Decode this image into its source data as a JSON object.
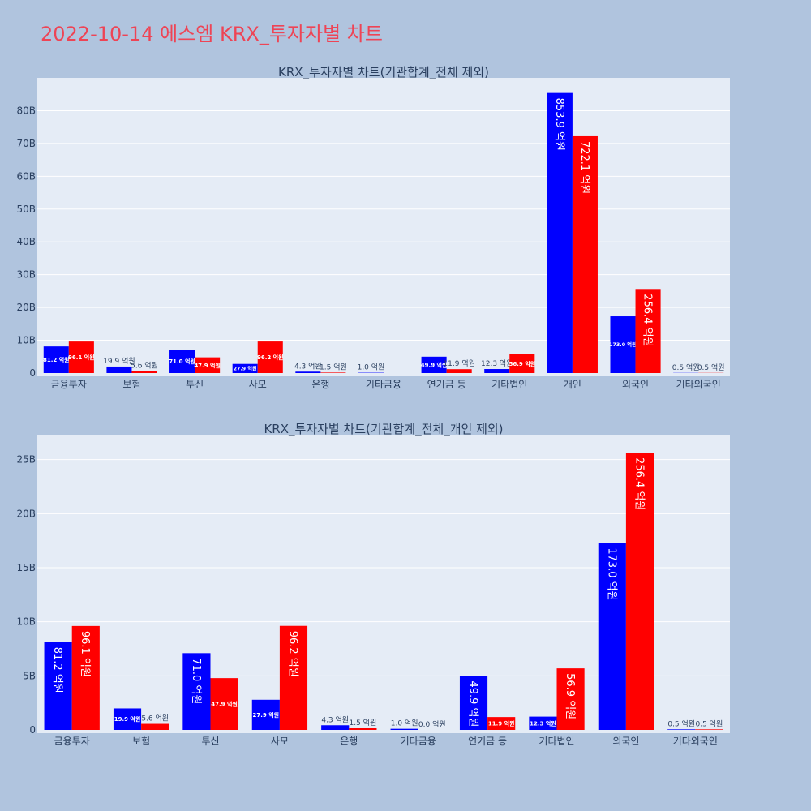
{
  "page": {
    "title": "2022-10-14 에스엠 KRX_투자자별 차트",
    "title_color": "#ee4455",
    "background": "#b0c4de",
    "plot_background": "#e5ecf6",
    "grid_color": "#ffffff"
  },
  "series_colors": [
    "#0000ff",
    "#ff0000"
  ],
  "chart_data": [
    {
      "type": "bar",
      "title": "KRX_투자자별 차트(기관합계_전체 제외)",
      "categories": [
        "금융투자",
        "보험",
        "투신",
        "사모",
        "은행",
        "기타금융",
        "연기금 등",
        "기타법인",
        "개인",
        "외국인",
        "기타외국인"
      ],
      "series": [
        {
          "values": [
            8.12,
            1.99,
            7.1,
            2.79,
            0.43,
            0.1,
            4.99,
            1.23,
            85.39,
            17.3,
            0.05
          ],
          "labels": [
            "81.2 억원",
            "19.9 억원",
            "71.0 억원",
            "27.9 억원",
            "4.3 억원",
            "1.0 억원",
            "49.9 억원",
            "12.3 억원",
            "853.9 억원",
            "173.0 억원",
            "0.5 억원"
          ]
        },
        {
          "values": [
            9.61,
            0.56,
            4.79,
            9.62,
            0.15,
            0.0,
            1.19,
            5.69,
            72.21,
            25.64,
            0.05
          ],
          "labels": [
            "96.1 억원",
            "5.6 억원",
            "47.9 억원",
            "96.2 억원",
            "1.5 억원",
            "",
            "11.9 억원",
            "56.9 억원",
            "722.1 억원",
            "256.4 억원",
            "0.5 억원"
          ]
        }
      ],
      "ylim": [
        0,
        90
      ],
      "yticks": [
        0,
        10,
        20,
        30,
        40,
        50,
        60,
        70,
        80
      ],
      "ytick_labels": [
        "0",
        "10B",
        "20B",
        "30B",
        "40B",
        "50B",
        "60B",
        "70B",
        "80B"
      ],
      "xlabel": "",
      "ylabel": "",
      "grid": true
    },
    {
      "type": "bar",
      "title": "KRX_투자자별 차트(기관합계_전체_개인 제외)",
      "categories": [
        "금융투자",
        "보험",
        "투신",
        "사모",
        "은행",
        "기타금융",
        "연기금 등",
        "기타법인",
        "외국인",
        "기타외국인"
      ],
      "series": [
        {
          "values": [
            8.12,
            1.99,
            7.1,
            2.79,
            0.43,
            0.1,
            4.99,
            1.23,
            17.3,
            0.05
          ],
          "labels": [
            "81.2 억원",
            "19.9 억원",
            "71.0 억원",
            "27.9 억원",
            "4.3 억원",
            "1.0 억원",
            "49.9 억원",
            "12.3 억원",
            "173.0 억원",
            "0.5 억원"
          ]
        },
        {
          "values": [
            9.61,
            0.56,
            4.79,
            9.62,
            0.15,
            0.0,
            1.19,
            5.69,
            25.64,
            0.05
          ],
          "labels": [
            "96.1 억원",
            "5.6 억원",
            "47.9 억원",
            "96.2 억원",
            "1.5 억원",
            "0.0 억원",
            "11.9 억원",
            "56.9 억원",
            "256.4 억원",
            "0.5 억원"
          ]
        }
      ],
      "ylim": [
        0,
        27.3
      ],
      "yticks": [
        0,
        5,
        10,
        15,
        20,
        25
      ],
      "ytick_labels": [
        "0",
        "5B",
        "10B",
        "15B",
        "20B",
        "25B"
      ],
      "xlabel": "",
      "ylabel": "",
      "grid": true
    }
  ]
}
